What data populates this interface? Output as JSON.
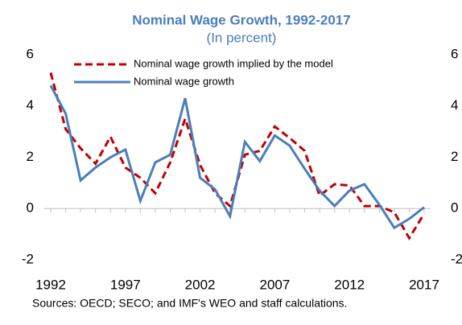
{
  "chart_data": {
    "type": "line",
    "title": "Nominal Wage Growth, 1992-2017",
    "subtitle": "(In percent)",
    "note": "Sources: OECD; SECO; and IMF's WEO and staff calculations.",
    "x": [
      1992,
      1993,
      1994,
      1995,
      1996,
      1997,
      1998,
      1999,
      2000,
      2001,
      2002,
      2003,
      2004,
      2005,
      2006,
      2007,
      2008,
      2009,
      2010,
      2011,
      2012,
      2013,
      2014,
      2015,
      2016,
      2017
    ],
    "xlim": [
      1992,
      2017
    ],
    "xticks": [
      1992,
      1997,
      2002,
      2007,
      2012,
      2017
    ],
    "ylim": [
      -2,
      6
    ],
    "yticks": [
      -2,
      0,
      2,
      4,
      6
    ],
    "y2lim": [
      -2,
      6
    ],
    "y2ticks": [
      -2,
      0,
      2,
      4,
      6
    ],
    "legend": "upper left",
    "series": [
      {
        "name": "Nominal wage growth implied by the model",
        "color": "#c00000",
        "dash": true,
        "values": [
          5.3,
          3.1,
          2.35,
          1.75,
          2.8,
          1.6,
          1.2,
          0.6,
          1.8,
          3.5,
          1.7,
          0.6,
          0.1,
          2.1,
          2.25,
          3.2,
          2.75,
          2.25,
          0.5,
          0.95,
          0.9,
          0.1,
          0.1,
          -0.15,
          -1.15,
          -0.2
        ]
      },
      {
        "name": "Nominal wage growth",
        "color": "#4a7ebb",
        "dash": false,
        "values": [
          4.8,
          3.7,
          1.1,
          1.6,
          2.0,
          2.3,
          0.3,
          1.8,
          2.1,
          4.3,
          1.2,
          0.75,
          -0.3,
          2.6,
          1.85,
          2.85,
          2.45,
          1.55,
          0.7,
          0.1,
          0.7,
          0.95,
          0.15,
          -0.75,
          -0.4,
          0.05
        ]
      }
    ]
  }
}
